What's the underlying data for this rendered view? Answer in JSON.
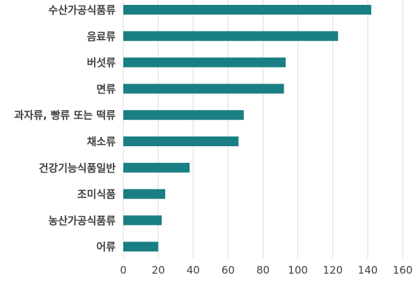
{
  "chart_data": {
    "type": "bar",
    "orientation": "horizontal",
    "categories": [
      "수산가공식품류",
      "음료류",
      "버섯류",
      "면류",
      "과자류, 빵류 또는 떡류",
      "채소류",
      "건강기능식품일반",
      "조미식품",
      "농산가공식품류",
      "어류"
    ],
    "values": [
      142,
      123,
      93,
      92,
      69,
      66,
      38,
      24,
      22,
      20
    ],
    "x_ticks": [
      0,
      20,
      40,
      60,
      80,
      100,
      120,
      140,
      160
    ],
    "xlim": [
      0,
      160
    ],
    "grid": true,
    "bar_color": "#1a7f84",
    "grid_color": "#d9d9d9",
    "title": "",
    "xlabel": "",
    "ylabel": ""
  }
}
